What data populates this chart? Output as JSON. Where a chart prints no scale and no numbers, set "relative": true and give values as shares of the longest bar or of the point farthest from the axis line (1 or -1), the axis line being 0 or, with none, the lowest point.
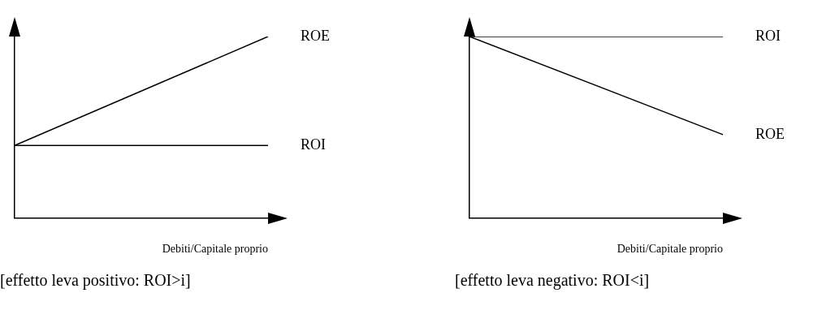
{
  "chart_data": [
    {
      "type": "line",
      "relative": true,
      "categories": [
        null,
        null
      ],
      "xlabel": "Debiti/Capitale proprio",
      "series": [
        {
          "name": "ROE",
          "color": "#000000",
          "values": [
            0.4,
            1
          ]
        },
        {
          "name": "ROI",
          "color": "#000000",
          "values": [
            0.4,
            0.4
          ]
        }
      ],
      "legend": false,
      "grid": false,
      "marker": "none",
      "annotations": [
        "[effetto leva positivo: ROI>i]"
      ]
    },
    {
      "type": "line",
      "relative": true,
      "categories": [
        null,
        null
      ],
      "xlabel": "Debiti/Capitale proprio",
      "series": [
        {
          "name": "ROI",
          "color": "#000000",
          "values": [
            1,
            1
          ]
        },
        {
          "name": "ROE",
          "color": "#000000",
          "values": [
            1,
            0.46
          ]
        }
      ],
      "legend": false,
      "grid": false,
      "marker": "none",
      "annotations": [
        "[effetto leva negativo: ROI<i]"
      ]
    }
  ]
}
